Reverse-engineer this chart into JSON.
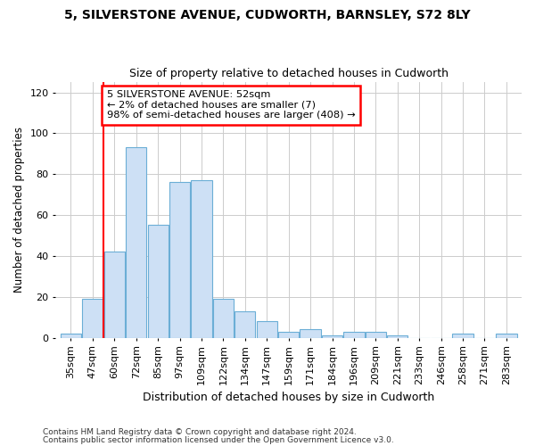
{
  "title1": "5, SILVERSTONE AVENUE, CUDWORTH, BARNSLEY, S72 8LY",
  "title2": "Size of property relative to detached houses in Cudworth",
  "xlabel": "Distribution of detached houses by size in Cudworth",
  "ylabel": "Number of detached properties",
  "categories": [
    "35sqm",
    "47sqm",
    "60sqm",
    "72sqm",
    "85sqm",
    "97sqm",
    "109sqm",
    "122sqm",
    "134sqm",
    "147sqm",
    "159sqm",
    "171sqm",
    "184sqm",
    "196sqm",
    "209sqm",
    "221sqm",
    "233sqm",
    "246sqm",
    "258sqm",
    "271sqm",
    "283sqm"
  ],
  "values": [
    2,
    19,
    42,
    93,
    55,
    76,
    77,
    19,
    13,
    8,
    3,
    4,
    1,
    3,
    3,
    1,
    0,
    0,
    2,
    0,
    2
  ],
  "bar_color": "#cde0f5",
  "bar_edge_color": "#6baed6",
  "ylim": [
    0,
    125
  ],
  "yticks": [
    0,
    20,
    40,
    60,
    80,
    100,
    120
  ],
  "red_line_x": 1.5,
  "annotation_line1": "5 SILVERSTONE AVENUE: 52sqm",
  "annotation_line2": "← 2% of detached houses are smaller (7)",
  "annotation_line3": "98% of semi-detached houses are larger (408) →",
  "footnote1": "Contains HM Land Registry data © Crown copyright and database right 2024.",
  "footnote2": "Contains public sector information licensed under the Open Government Licence v3.0.",
  "bg_color": "#ffffff",
  "grid_color": "#cccccc"
}
